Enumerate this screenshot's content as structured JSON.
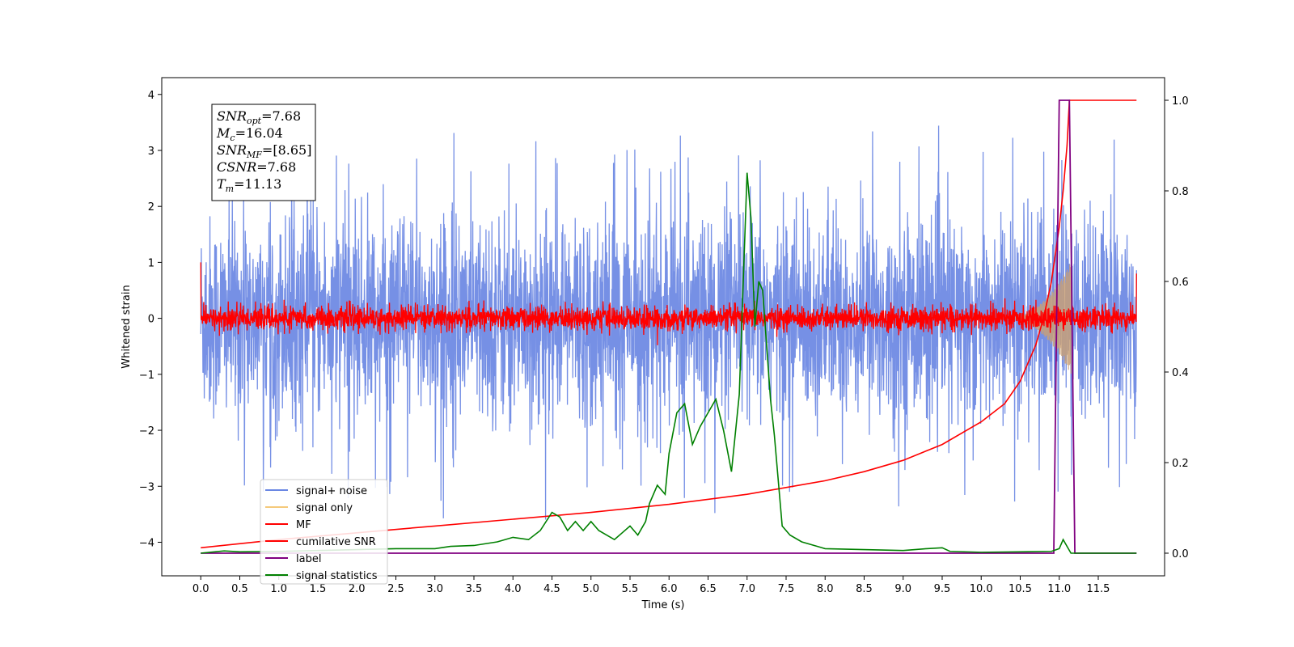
{
  "chart_data": {
    "type": "line",
    "xlabel": "Time (s)",
    "ylabel": "Whitened strain",
    "xlim": [
      -0.5,
      12.35
    ],
    "ylim": [
      -4.6,
      4.3
    ],
    "y2lim": [
      -0.05,
      1.05
    ],
    "x_ticks": [
      "0.0",
      "0.5",
      "1.0",
      "1.5",
      "2.0",
      "2.5",
      "3.0",
      "3.5",
      "4.0",
      "4.5",
      "5.0",
      "5.5",
      "6.0",
      "6.5",
      "7.0",
      "7.5",
      "8.0",
      "8.5",
      "9.0",
      "9.5",
      "10.0",
      "10.5",
      "11.0",
      "11.5"
    ],
    "y_ticks": [
      "4",
      "3",
      "2",
      "1",
      "0",
      "−1",
      "−2",
      "−3",
      "−4"
    ],
    "y2_ticks": [
      "1.0",
      "0.8",
      "0.6",
      "0.4",
      "0.2",
      "0.0"
    ],
    "annotation": {
      "lines": [
        {
          "sym": "SNR",
          "sub": "opt",
          "text": "=7.68"
        },
        {
          "sym": "M",
          "sub": "c",
          "text": "=16.04"
        },
        {
          "sym": "SNR",
          "sub": "MF",
          "text": "=[8.65]"
        },
        {
          "sym": "CSNR",
          "sub": "",
          "text": "=7.68"
        },
        {
          "sym": "T",
          "sub": "m",
          "text": "=11.13"
        }
      ]
    },
    "legend": {
      "placement": "lower-left",
      "entries": [
        {
          "name": "signal+ noise",
          "color": "#6a87e3"
        },
        {
          "name": "signal only",
          "color": "#f5c97a"
        },
        {
          "name": "MF",
          "color": "#ff0000"
        },
        {
          "name": "cumilative SNR",
          "color": "#ff0000"
        },
        {
          "name": "label",
          "color": "#800080"
        },
        {
          "name": "signal statistics",
          "color": "#008000"
        }
      ]
    },
    "series": [
      {
        "name": "signal+ noise",
        "axis": "left",
        "kind": "noise",
        "x_range": [
          0.0,
          11.99
        ],
        "sigma": 0.9,
        "max": 3.88,
        "min": -4.15,
        "color": "#6a87e3"
      },
      {
        "name": "signal only",
        "axis": "left",
        "kind": "chirp",
        "x_range": [
          10.3,
          11.15
        ],
        "peak_amplitude": 1.0,
        "color": "#c8a078"
      },
      {
        "name": "MF",
        "axis": "left",
        "kind": "noise",
        "x_range": [
          0.0,
          11.99
        ],
        "sigma": 0.1,
        "color": "#ff0000"
      },
      {
        "name": "cumilative SNR",
        "axis": "right",
        "x": [
          0.0,
          1.0,
          2.0,
          3.0,
          4.0,
          5.0,
          6.0,
          7.0,
          8.0,
          8.5,
          9.0,
          9.5,
          10.0,
          10.3,
          10.5,
          10.7,
          10.8,
          10.9,
          11.0,
          11.05,
          11.1,
          11.13,
          11.99
        ],
        "y": [
          0.012,
          0.03,
          0.045,
          0.06,
          0.075,
          0.09,
          0.108,
          0.13,
          0.16,
          0.18,
          0.205,
          0.24,
          0.29,
          0.33,
          0.38,
          0.46,
          0.52,
          0.6,
          0.72,
          0.8,
          0.9,
          1.0,
          1.0
        ],
        "color": "#ff0000"
      },
      {
        "name": "label",
        "axis": "right",
        "x": [
          0.0,
          10.93,
          11.0,
          11.13,
          11.2,
          11.99
        ],
        "y": [
          0.0,
          0.0,
          1.0,
          1.0,
          0.0,
          0.0
        ],
        "color": "#800080"
      },
      {
        "name": "signal statistics",
        "axis": "right",
        "x": [
          0.0,
          0.3,
          0.5,
          1.0,
          1.5,
          2.0,
          2.5,
          3.0,
          3.2,
          3.5,
          3.8,
          4.0,
          4.2,
          4.35,
          4.5,
          4.6,
          4.7,
          4.8,
          4.9,
          5.0,
          5.1,
          5.2,
          5.3,
          5.4,
          5.5,
          5.6,
          5.7,
          5.75,
          5.85,
          5.95,
          6.0,
          6.1,
          6.2,
          6.3,
          6.4,
          6.5,
          6.6,
          6.7,
          6.8,
          6.9,
          7.0,
          7.05,
          7.1,
          7.15,
          7.2,
          7.3,
          7.35,
          7.45,
          7.55,
          7.7,
          8.0,
          8.5,
          9.0,
          9.3,
          9.5,
          9.6,
          10.0,
          10.5,
          10.9,
          11.0,
          11.05,
          11.1,
          11.15,
          11.5,
          11.99
        ],
        "y": [
          0.0,
          0.005,
          0.003,
          0.004,
          0.006,
          0.008,
          0.01,
          0.01,
          0.015,
          0.017,
          0.025,
          0.035,
          0.03,
          0.05,
          0.09,
          0.08,
          0.05,
          0.07,
          0.05,
          0.07,
          0.05,
          0.04,
          0.03,
          0.045,
          0.06,
          0.04,
          0.07,
          0.11,
          0.15,
          0.13,
          0.22,
          0.31,
          0.33,
          0.24,
          0.28,
          0.31,
          0.34,
          0.27,
          0.18,
          0.35,
          0.84,
          0.74,
          0.5,
          0.6,
          0.58,
          0.34,
          0.26,
          0.06,
          0.04,
          0.025,
          0.01,
          0.008,
          0.006,
          0.01,
          0.012,
          0.004,
          0.002,
          0.003,
          0.004,
          0.01,
          0.03,
          0.015,
          0.0,
          0.0,
          0.0
        ],
        "color": "#008000"
      }
    ]
  }
}
